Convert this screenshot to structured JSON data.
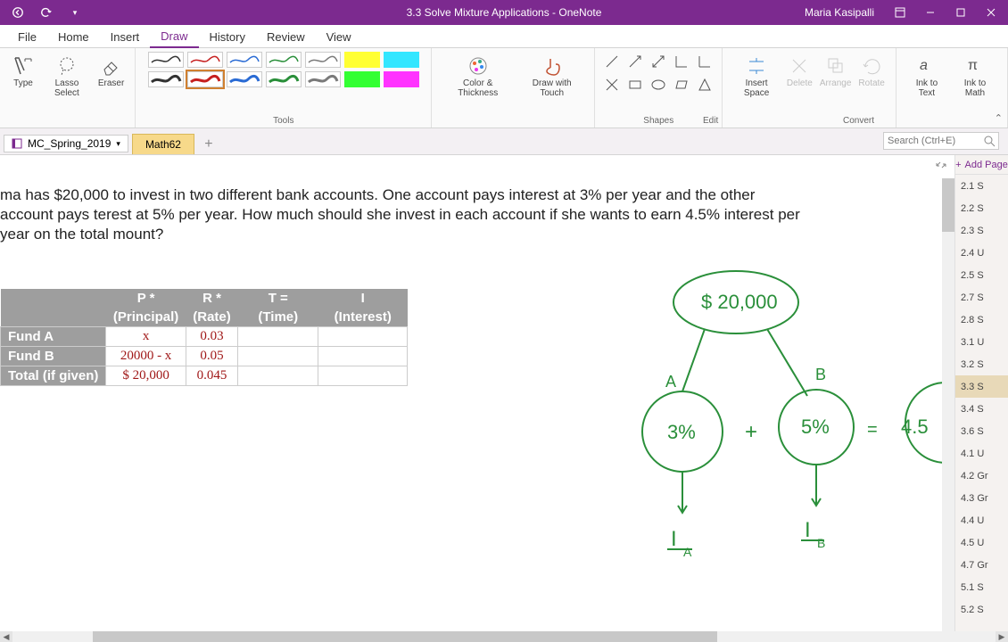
{
  "titlebar": {
    "title": "3.3 Solve Mixture Applications  -  OneNote",
    "user": "Maria Kasipalli"
  },
  "menu": {
    "tabs": [
      "File",
      "Home",
      "Insert",
      "Draw",
      "History",
      "Review",
      "View"
    ],
    "active": "Draw"
  },
  "ribbon": {
    "type_label": "Type",
    "lasso_label": "Lasso Select",
    "eraser_label": "Eraser",
    "tools_label": "Tools",
    "color_label": "Color & Thickness",
    "touch_label": "Draw with Touch",
    "shapes_label": "Shapes",
    "insert_space": "Insert Space",
    "delete": "Delete",
    "arrange": "Arrange",
    "rotate": "Rotate",
    "edit_label": "Edit",
    "ink_text": "Ink to Text",
    "ink_math": "Ink to Math",
    "convert_label": "Convert",
    "pen_colors_row1": [
      "#333333",
      "#c62020",
      "#2a6bd4",
      "#2a8f3a",
      "#7a7a7a"
    ],
    "pen_colors_row2": [
      "#333333",
      "#c62020",
      "#2a6bd4",
      "#2a8f3a",
      "#7a7a7a"
    ],
    "hl_row1": [
      "#ffff33",
      "#33e6ff"
    ],
    "hl_row2": [
      "#33ff33",
      "#ff33ff"
    ]
  },
  "notebook": {
    "name": "MC_Spring_2019",
    "section": "Math62",
    "search_placeholder": "Search (Ctrl+E)"
  },
  "pages": {
    "add_label": "Add Page",
    "items": [
      "2.1 S",
      "2.2 S",
      "2.3 S",
      "2.4 U",
      "2.5 S",
      "2.7 S",
      "2.8 S",
      "3.1 U",
      "3.2 S",
      "3.3 S",
      "3.4 S",
      "3.6 S",
      "4.1 U",
      "4.2 Gr",
      "4.3 Gr",
      "4.4 U",
      "4.5 U",
      "4.7 Gr",
      "5.1 S",
      "5.2 S"
    ],
    "active_index": 9
  },
  "problem": {
    "text": "ma has $20,000 to invest in two different bank accounts. One account pays interest at 3% per year and the other account pays terest at 5% per year. How much should she invest in each account if she wants to earn 4.5% interest per year on the total mount?"
  },
  "table": {
    "headers_top": [
      "P      *",
      "R      *",
      "T     =",
      "I"
    ],
    "headers_sub": [
      "(Principal)",
      "(Rate)",
      "(Time)",
      "(Interest)"
    ],
    "rows": [
      {
        "label": "Fund A",
        "p": "x",
        "r": "0.03",
        "t": "",
        "i": ""
      },
      {
        "label": "Fund B",
        "p": "20000 - x",
        "r": "0.05",
        "t": "",
        "i": ""
      },
      {
        "label": "Total (if given)",
        "p": "$ 20,000",
        "r": "0.045",
        "t": "",
        "i": ""
      }
    ]
  },
  "ink": {
    "stroke": "#2a8f3a",
    "top_bubble": "$ 20,000",
    "A": "A",
    "B": "B",
    "left_bubble": "3%",
    "mid_bubble": "5%",
    "right_bubble": "4.5",
    "plus": "+",
    "equals": "=",
    "IA": "I",
    "IA_sub": "A",
    "IB": "I",
    "IB_sub": "B"
  }
}
